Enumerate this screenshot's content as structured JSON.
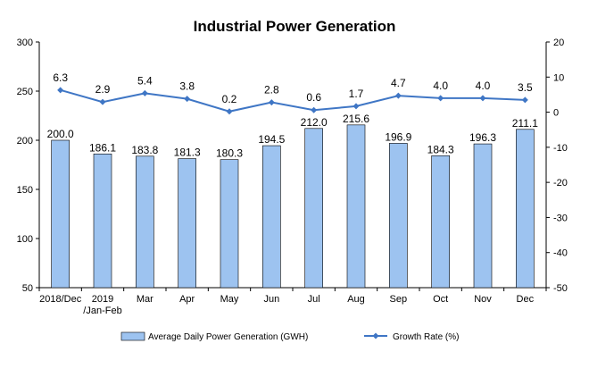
{
  "chart_data": {
    "type": "bar",
    "title": "Industrial Power Generation",
    "categories": [
      [
        "2018/Dec"
      ],
      [
        "2019",
        "/Jan-Feb"
      ],
      [
        "Mar"
      ],
      [
        "Apr"
      ],
      [
        "May"
      ],
      [
        "Jun"
      ],
      [
        "Jul"
      ],
      [
        "Aug"
      ],
      [
        "Sep"
      ],
      [
        "Oct"
      ],
      [
        "Nov"
      ],
      [
        "Dec"
      ]
    ],
    "series": [
      {
        "name": "Average Daily Power Generation (GWH)",
        "type": "bar",
        "axis": "left",
        "color": "#9dc3f0",
        "values": [
          200.0,
          186.1,
          183.8,
          181.3,
          180.3,
          194.5,
          212.0,
          215.6,
          196.9,
          184.3,
          196.3,
          211.1
        ],
        "labels": [
          "200.0",
          "186.1",
          "183.8",
          "181.3",
          "180.3",
          "194.5",
          "212.0",
          "215.6",
          "196.9",
          "184.3",
          "196.3",
          "211.1"
        ]
      },
      {
        "name": "Growth Rate (%)",
        "type": "line",
        "axis": "right",
        "color": "#3f76c5",
        "values": [
          6.3,
          2.9,
          5.4,
          3.8,
          0.2,
          2.8,
          0.6,
          1.7,
          4.7,
          4.0,
          4.0,
          3.5
        ],
        "labels": [
          "6.3",
          "2.9",
          "5.4",
          "3.8",
          "0.2",
          "2.8",
          "0.6",
          "1.7",
          "4.7",
          "4.0",
          "4.0",
          "3.5"
        ]
      }
    ],
    "y_left": {
      "min": 50,
      "max": 300,
      "ticks": [
        "50",
        "100",
        "150",
        "200",
        "250",
        "300"
      ]
    },
    "y_right": {
      "min": -50,
      "max": 20,
      "ticks": [
        "-50",
        "-40",
        "-30",
        "-20",
        "-10",
        "0",
        "10",
        "20"
      ]
    },
    "grid": false,
    "legend_position": "bottom"
  }
}
